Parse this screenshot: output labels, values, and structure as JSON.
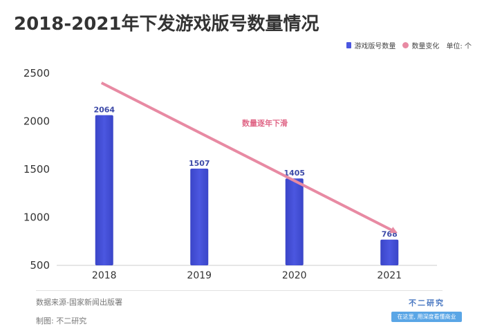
{
  "title": "2018-2021年下发游戏版号数量情况",
  "legend": {
    "bar_label": "游戏版号数量",
    "line_label": "数量变化",
    "unit": "单位: 个"
  },
  "annotation": "数量逐年下滑",
  "source": "数据来源-国家新闻出版署",
  "maker": "制图: 不二研究",
  "brand": {
    "name": "不二研究",
    "tagline": "在这里, 用深度看懂商业"
  },
  "colors": {
    "bar": "#4b57e0",
    "arrow": "#e88aa3"
  },
  "chart_data": {
    "type": "bar",
    "categories": [
      "2018",
      "2019",
      "2020",
      "2021"
    ],
    "series": [
      {
        "name": "游戏版号数量",
        "values": [
          2064,
          1507,
          1405,
          768
        ]
      }
    ],
    "data_labels": [
      "2064",
      "1507",
      "1405",
      "768"
    ],
    "yticks": [
      "500",
      "1000",
      "1500",
      "2000",
      "2500"
    ],
    "ytick_values": [
      500,
      1000,
      1500,
      2000,
      2500
    ],
    "ylim": [
      500,
      2500
    ],
    "trend_arrow": {
      "from": [
        2018,
        2400
      ],
      "to": [
        2021,
        850
      ]
    },
    "grid": false,
    "legend_position": "top-right"
  }
}
